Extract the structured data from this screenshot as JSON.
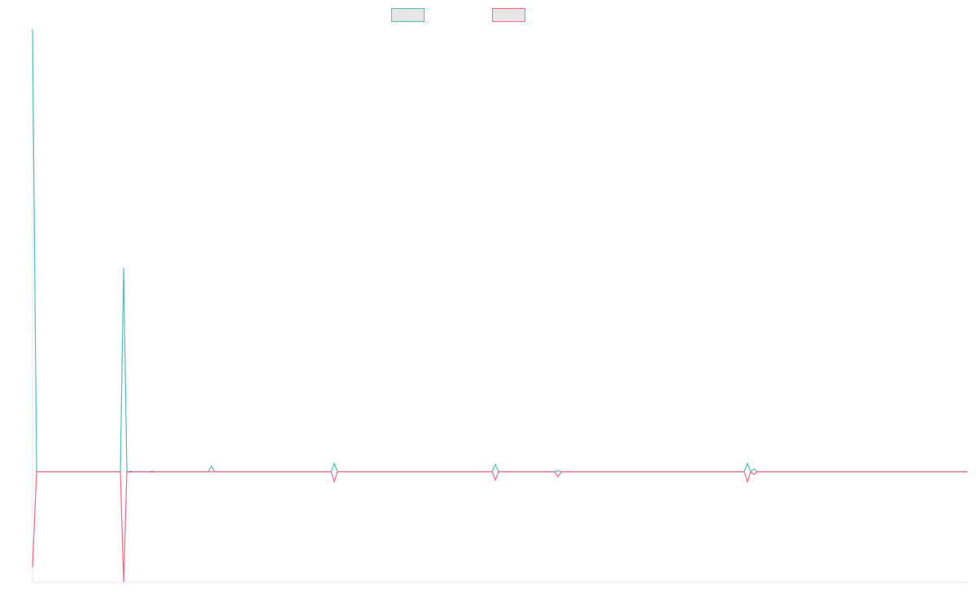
{
  "chart_data": {
    "type": "line",
    "x": [
      0,
      5,
      108,
      112,
      116,
      118,
      121,
      124,
      144,
      147,
      150,
      216,
      220,
      224,
      367,
      371,
      375,
      565,
      569,
      573,
      642,
      646,
      650,
      875,
      879,
      883,
      887,
      891,
      1150
    ],
    "series": [
      {
        "color": "#4bc0c0",
        "values": [
          800,
          0,
          0,
          368,
          0,
          0,
          1,
          0,
          0,
          1,
          0,
          0,
          10,
          0,
          0,
          15,
          0,
          0,
          13,
          0,
          0,
          2,
          0,
          0,
          15,
          0,
          5,
          0,
          0
        ]
      },
      {
        "color": "#ff6384",
        "values": [
          -173,
          0,
          0,
          -200,
          0,
          0,
          -1,
          0,
          0,
          -1,
          0,
          0,
          0,
          0,
          0,
          -18,
          0,
          0,
          -15,
          0,
          0,
          -9,
          0,
          0,
          -18,
          0,
          -5,
          0,
          0
        ]
      }
    ],
    "xlim": [
      0,
      1150
    ],
    "ylim": [
      -200,
      800
    ],
    "legend": "top"
  }
}
